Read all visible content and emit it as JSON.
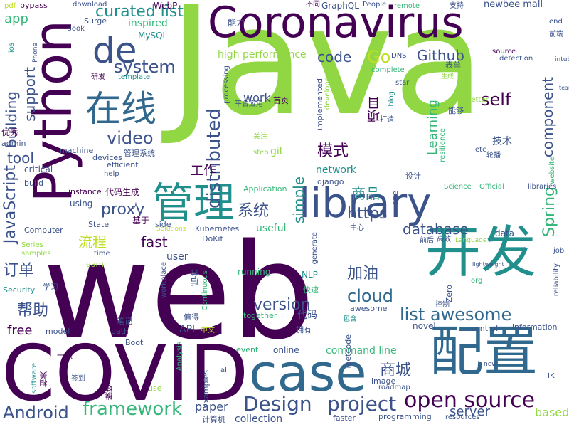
{
  "palette": {
    "purple": "#440154",
    "indigo": "#3b528b",
    "blue": "#31688e",
    "teal": "#21908d",
    "green": "#35b779",
    "lime": "#90d743",
    "yellow": "#bddf26"
  },
  "words": [
    "Java",
    "web",
    "Coronavirus",
    "COVID",
    "Python",
    "library",
    "case",
    "配置",
    "开发",
    "管理",
    "在线",
    "de",
    "open source",
    "Design",
    "project",
    "framework",
    "Android",
    "JavaScript",
    "distributed",
    "system",
    "video",
    "proxy",
    "curated list",
    "list awesome",
    "https",
    "database",
    "cloud",
    "version",
    "Spring",
    "component",
    "self",
    "Github",
    "Go",
    "code",
    "商品",
    "商城",
    "加油",
    "帮助",
    "订单",
    "流程",
    "系统",
    "模式",
    "工作",
    "building",
    "support",
    "tool",
    "free",
    "fast",
    "simple",
    "Learning",
    "项目",
    "app",
    "command line",
    "server",
    "based",
    "paper",
    "collection",
    "bypass",
    "download",
    "WebP",
    "不同",
    "GraphQL",
    "remote",
    "支持",
    "newbee mall",
    "能力",
    "inspired",
    "MySQL",
    "Surge",
    "Book",
    "ios",
    "pdf",
    "high performance",
    "end",
    "前端",
    "source",
    "detection",
    "intubation",
    "DNS",
    "complete",
    "表单",
    "生成",
    "team",
    "研发",
    "template",
    "processing",
    "star",
    "blog",
    "work",
    "首页",
    "平台应用",
    "implemented",
    "developer",
    "打造",
    "能够",
    "技术",
    "better",
    "resilience",
    "轮播",
    "etc",
    "website",
    "优秀",
    "admin",
    "machine",
    "devices",
    "efficient",
    "管理系统",
    "关注",
    "step",
    "git",
    "network",
    "设计",
    "critical",
    "help",
    "build",
    "django",
    "Application",
    "Science",
    "Official",
    "libraries",
    "instance",
    "代码生成",
    "using",
    "State",
    "基于",
    "side",
    "Solutions",
    "Kubernetes",
    "useful",
    "one",
    "中心",
    "前后",
    "高效",
    "Language",
    "data",
    "Computer",
    "DoKit",
    "Series",
    "time",
    "samples",
    "user",
    "generate",
    "job",
    "learn",
    "running",
    "NLP",
    "lightweight",
    "reliability",
    "Security",
    "学习",
    "workplace",
    "后台",
    "Continuous",
    "快速",
    "org",
    "Zero",
    "控制",
    "together",
    "代码",
    "awesome",
    "笔记",
    "值得",
    "model",
    "path",
    "API",
    "中文",
    "拥有",
    "包含",
    "novel",
    "control",
    "information",
    "Boot",
    "leetcode",
    "event",
    "online",
    "Analysis",
    "al",
    "software",
    "相关",
    "签到",
    "use",
    "模块",
    "examples",
    "image",
    "roadmap",
    "new",
    "IK",
    "计算机",
    "faster",
    "programming",
    "resources",
    "Phone",
    "一款",
    "人",
    "People"
  ]
}
